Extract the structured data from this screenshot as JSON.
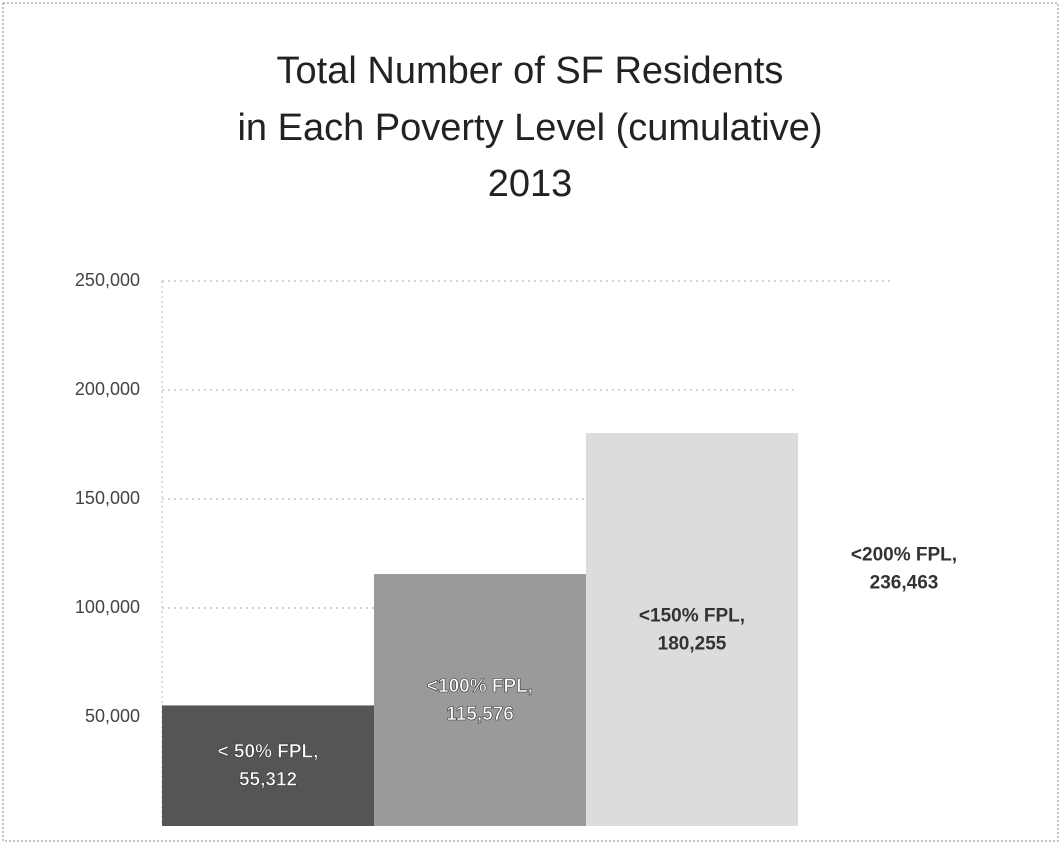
{
  "chart_data": {
    "type": "bar",
    "title": [
      "Total Number of SF Residents",
      "in Each Poverty Level (cumulative)",
      "2013"
    ],
    "categories": [
      "< 50% FPL,",
      "<100% FPL,",
      "<150% FPL,",
      "<200% FPL,"
    ],
    "values": [
      55312,
      115576,
      180255,
      236463
    ],
    "value_labels": [
      "55,312",
      "115,576",
      "180,255",
      "236,463"
    ],
    "colors": [
      "#555555",
      "#9a9a9a",
      "#dcdcdc",
      "#ffffff"
    ],
    "ylim": [
      0,
      250000
    ],
    "yticks": [
      {
        "value": 50000,
        "label": "50,000"
      },
      {
        "value": 100000,
        "label": "100,000"
      },
      {
        "value": 150000,
        "label": "150,000"
      },
      {
        "value": 200000,
        "label": "200,000"
      },
      {
        "value": 250000,
        "label": "250,000"
      }
    ],
    "grid": true
  }
}
